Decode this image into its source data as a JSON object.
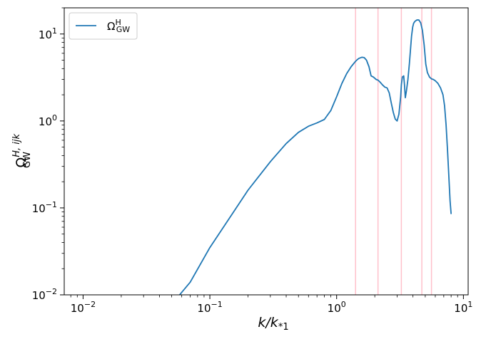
{
  "chart_data": {
    "type": "line",
    "xscale": "log",
    "yscale": "log",
    "xlim": [
      0.0071,
      10.9
    ],
    "ylim": [
      0.01,
      20
    ],
    "xticks": [
      {
        "value": 0.01,
        "base": "10",
        "exp": "−2"
      },
      {
        "value": 0.1,
        "base": "10",
        "exp": "−1"
      },
      {
        "value": 1,
        "base": "10",
        "exp": "0"
      },
      {
        "value": 10,
        "base": "10",
        "exp": "1"
      }
    ],
    "yticks": [
      {
        "value": 0.01,
        "base": "10",
        "exp": "−2"
      },
      {
        "value": 0.1,
        "base": "10",
        "exp": "−1"
      },
      {
        "value": 1,
        "base": "10",
        "exp": "0"
      },
      {
        "value": 10,
        "base": "10",
        "exp": "1"
      }
    ],
    "xlabel": {
      "main": "k/k",
      "sub": "*1"
    },
    "ylabel": {
      "main": "Ω",
      "sup": "H, ijk",
      "sub": "GW"
    },
    "legend": {
      "placement": "upper-left",
      "entries": [
        {
          "main": "Ω",
          "sup": "H",
          "sub": "GW"
        }
      ]
    },
    "line_color": "#1f77b4",
    "vline_color": "#ffc0cb",
    "vlines": [
      1.41,
      2.12,
      3.24,
      4.7,
      5.6
    ],
    "grid": false,
    "series": [
      {
        "x": [
          0.0561,
          0.07,
          0.1,
          0.15,
          0.2,
          0.3,
          0.4,
          0.5,
          0.6,
          0.7,
          0.8,
          0.9,
          1.0,
          1.1,
          1.2,
          1.3,
          1.4,
          1.45,
          1.5,
          1.58,
          1.65,
          1.72,
          1.8,
          1.87,
          1.95,
          2.05,
          2.12,
          2.2,
          2.3,
          2.4,
          2.5,
          2.6,
          2.7,
          2.8,
          2.9,
          3.0,
          3.1,
          3.2,
          3.24,
          3.3,
          3.38,
          3.43,
          3.48,
          3.55,
          3.65,
          3.75,
          3.85,
          3.9,
          3.98,
          4.05,
          4.15,
          4.3,
          4.45,
          4.6,
          4.75,
          4.9,
          5.05,
          5.2,
          5.4,
          5.6,
          5.8,
          6.0,
          6.3,
          6.6,
          6.9,
          7.1,
          7.3,
          7.5,
          7.7,
          7.85,
          8.0
        ],
        "y": [
          0.0095,
          0.014,
          0.035,
          0.085,
          0.16,
          0.34,
          0.55,
          0.74,
          0.87,
          0.95,
          1.04,
          1.32,
          1.9,
          2.7,
          3.5,
          4.2,
          4.8,
          5.05,
          5.25,
          5.4,
          5.35,
          5.0,
          4.2,
          3.3,
          3.2,
          3.0,
          2.95,
          2.8,
          2.6,
          2.45,
          2.4,
          2.1,
          1.6,
          1.25,
          1.05,
          1.0,
          1.2,
          1.9,
          2.6,
          3.2,
          3.3,
          2.6,
          1.85,
          2.2,
          3.0,
          4.6,
          7.5,
          9.5,
          12.0,
          13.3,
          14.0,
          14.5,
          14.5,
          13.5,
          11.0,
          7.5,
          4.5,
          3.6,
          3.2,
          3.05,
          3.0,
          2.9,
          2.7,
          2.4,
          2.0,
          1.5,
          0.9,
          0.45,
          0.21,
          0.12,
          0.085
        ]
      }
    ]
  }
}
